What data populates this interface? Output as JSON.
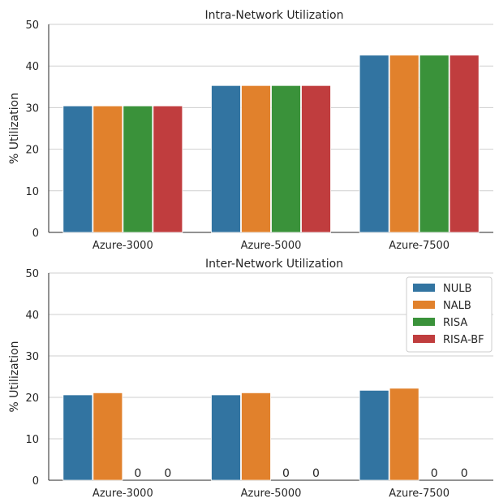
{
  "chart_data": [
    {
      "type": "bar",
      "title": "Intra-Network Utilization",
      "ylabel": "% Utilization",
      "xlabel": "",
      "ylim": [
        0,
        50
      ],
      "yticks": [
        "0",
        "10",
        "20",
        "30",
        "40",
        "50"
      ],
      "categories": [
        "Azure-3000",
        "Azure-5000",
        "Azure-7500"
      ],
      "legend": false,
      "series": [
        {
          "name": "NULB",
          "values": [
            30.4,
            35.3,
            42.6
          ]
        },
        {
          "name": "NALB",
          "values": [
            30.4,
            35.3,
            42.6
          ]
        },
        {
          "name": "RISA",
          "values": [
            30.4,
            35.3,
            42.6
          ]
        },
        {
          "name": "RISA-BF",
          "values": [
            30.4,
            35.3,
            42.6
          ]
        }
      ]
    },
    {
      "type": "bar",
      "title": "Inter-Network Utilization",
      "ylabel": "% Utilization",
      "xlabel": "",
      "ylim": [
        0,
        50
      ],
      "yticks": [
        "0",
        "10",
        "20",
        "30",
        "40",
        "50"
      ],
      "categories": [
        "Azure-3000",
        "Azure-5000",
        "Azure-7500"
      ],
      "legend": true,
      "legend_position": "top-right",
      "series": [
        {
          "name": "NULB",
          "values": [
            20.6,
            20.6,
            21.7
          ]
        },
        {
          "name": "NALB",
          "values": [
            21.1,
            21.1,
            22.2
          ]
        },
        {
          "name": "RISA",
          "values": [
            0,
            0,
            0
          ],
          "labels": [
            "0",
            "0",
            "0"
          ]
        },
        {
          "name": "RISA-BF",
          "values": [
            0,
            0,
            0
          ],
          "labels": [
            "0",
            "0",
            "0"
          ]
        }
      ]
    }
  ],
  "colors": {
    "NULB": "#3274a1",
    "NALB": "#e1812c",
    "RISA": "#3a923a",
    "RISA-BF": "#c03d3e"
  }
}
